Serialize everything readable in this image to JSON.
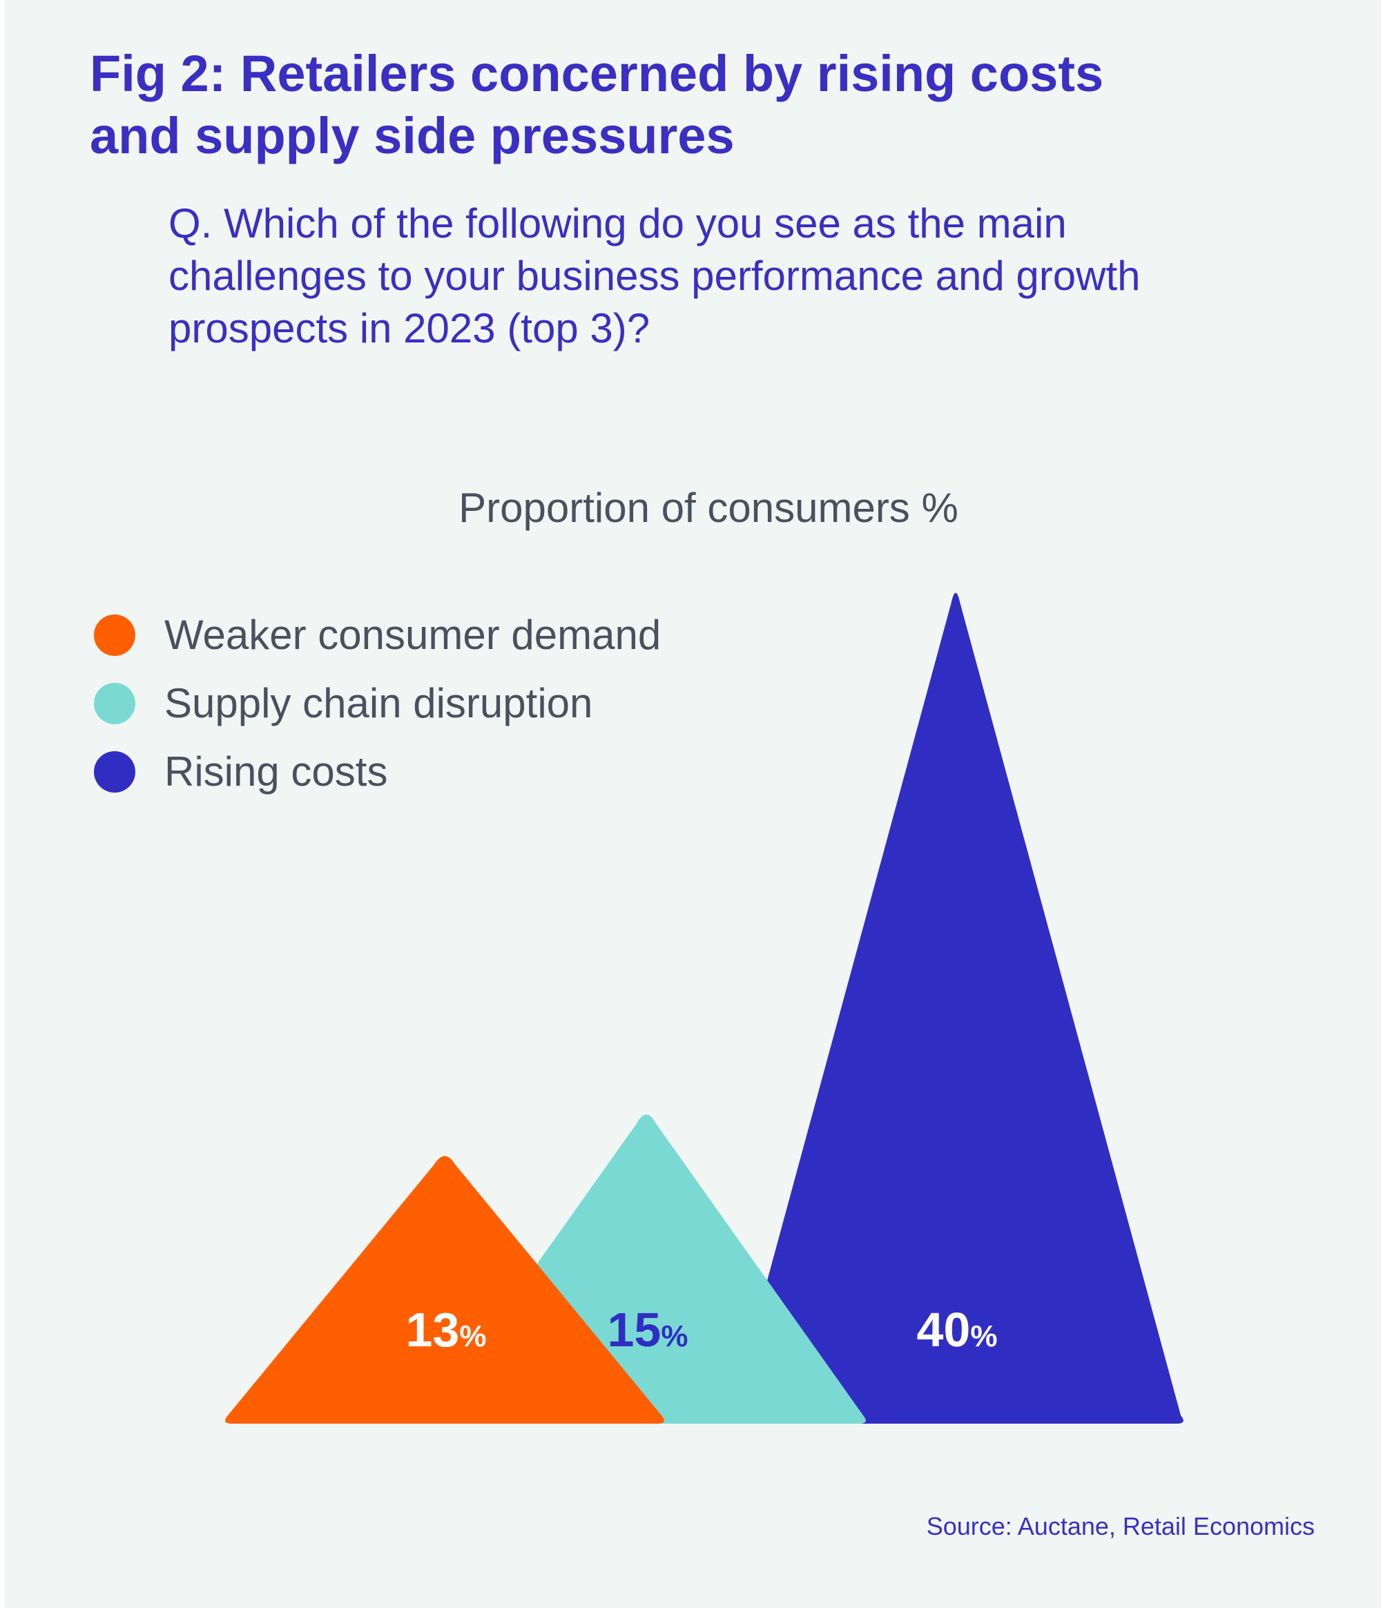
{
  "figure": {
    "title": "Fig 2: Retailers concerned by rising costs and supply side pressures",
    "question": "Q. Which of the following do you see as the main challenges to your business performance and growth prospects in 2023 (top 3)?",
    "source": "Source: Auctane, Retail Economics"
  },
  "chart_data": {
    "type": "bar",
    "shape": "triangle",
    "title": "Proportion of consumers %",
    "unit": "%",
    "legend_position": "top-left",
    "categories": [
      "Weaker consumer demand",
      "Supply chain disruption",
      "Rising costs"
    ],
    "values": [
      13,
      15,
      40
    ],
    "colors": [
      "#ff5f00",
      "#7adad3",
      "#302ec2"
    ],
    "label_colors": [
      "#ffffff",
      "#302ec2",
      "#ffffff"
    ]
  }
}
